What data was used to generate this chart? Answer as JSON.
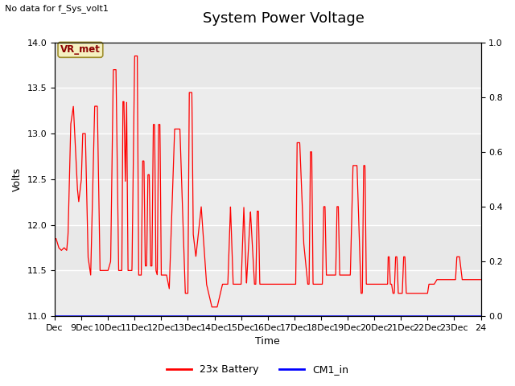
{
  "title": "System Power Voltage",
  "subtitle": "No data for f_Sys_volt1",
  "ylabel_left": "Volts",
  "xlabel": "Time",
  "ylim_left": [
    11.0,
    14.0
  ],
  "ylim_right": [
    0.0,
    1.0
  ],
  "yticks_left": [
    11.0,
    11.5,
    12.0,
    12.5,
    13.0,
    13.5,
    14.0
  ],
  "yticks_right": [
    0.0,
    0.2,
    0.4,
    0.6,
    0.8,
    1.0
  ],
  "xtick_labels": [
    "Dec",
    "9Dec",
    "10Dec",
    "11Dec",
    "12Dec",
    "13Dec",
    "14Dec",
    "15Dec",
    "16Dec",
    "17Dec",
    "18Dec",
    "19Dec",
    "20Dec",
    "21Dec",
    "22Dec",
    "23Dec",
    "24"
  ],
  "plot_bg_color": "#e8e8e8",
  "band_color": "#d0d0d0",
  "fig_bg_color": "#ffffff",
  "legend_entries": [
    "23x Battery",
    "CM1_in"
  ],
  "legend_colors": [
    "red",
    "blue"
  ],
  "vr_met_label": "VR_met",
  "title_fontsize": 13,
  "label_fontsize": 9,
  "tick_fontsize": 8
}
